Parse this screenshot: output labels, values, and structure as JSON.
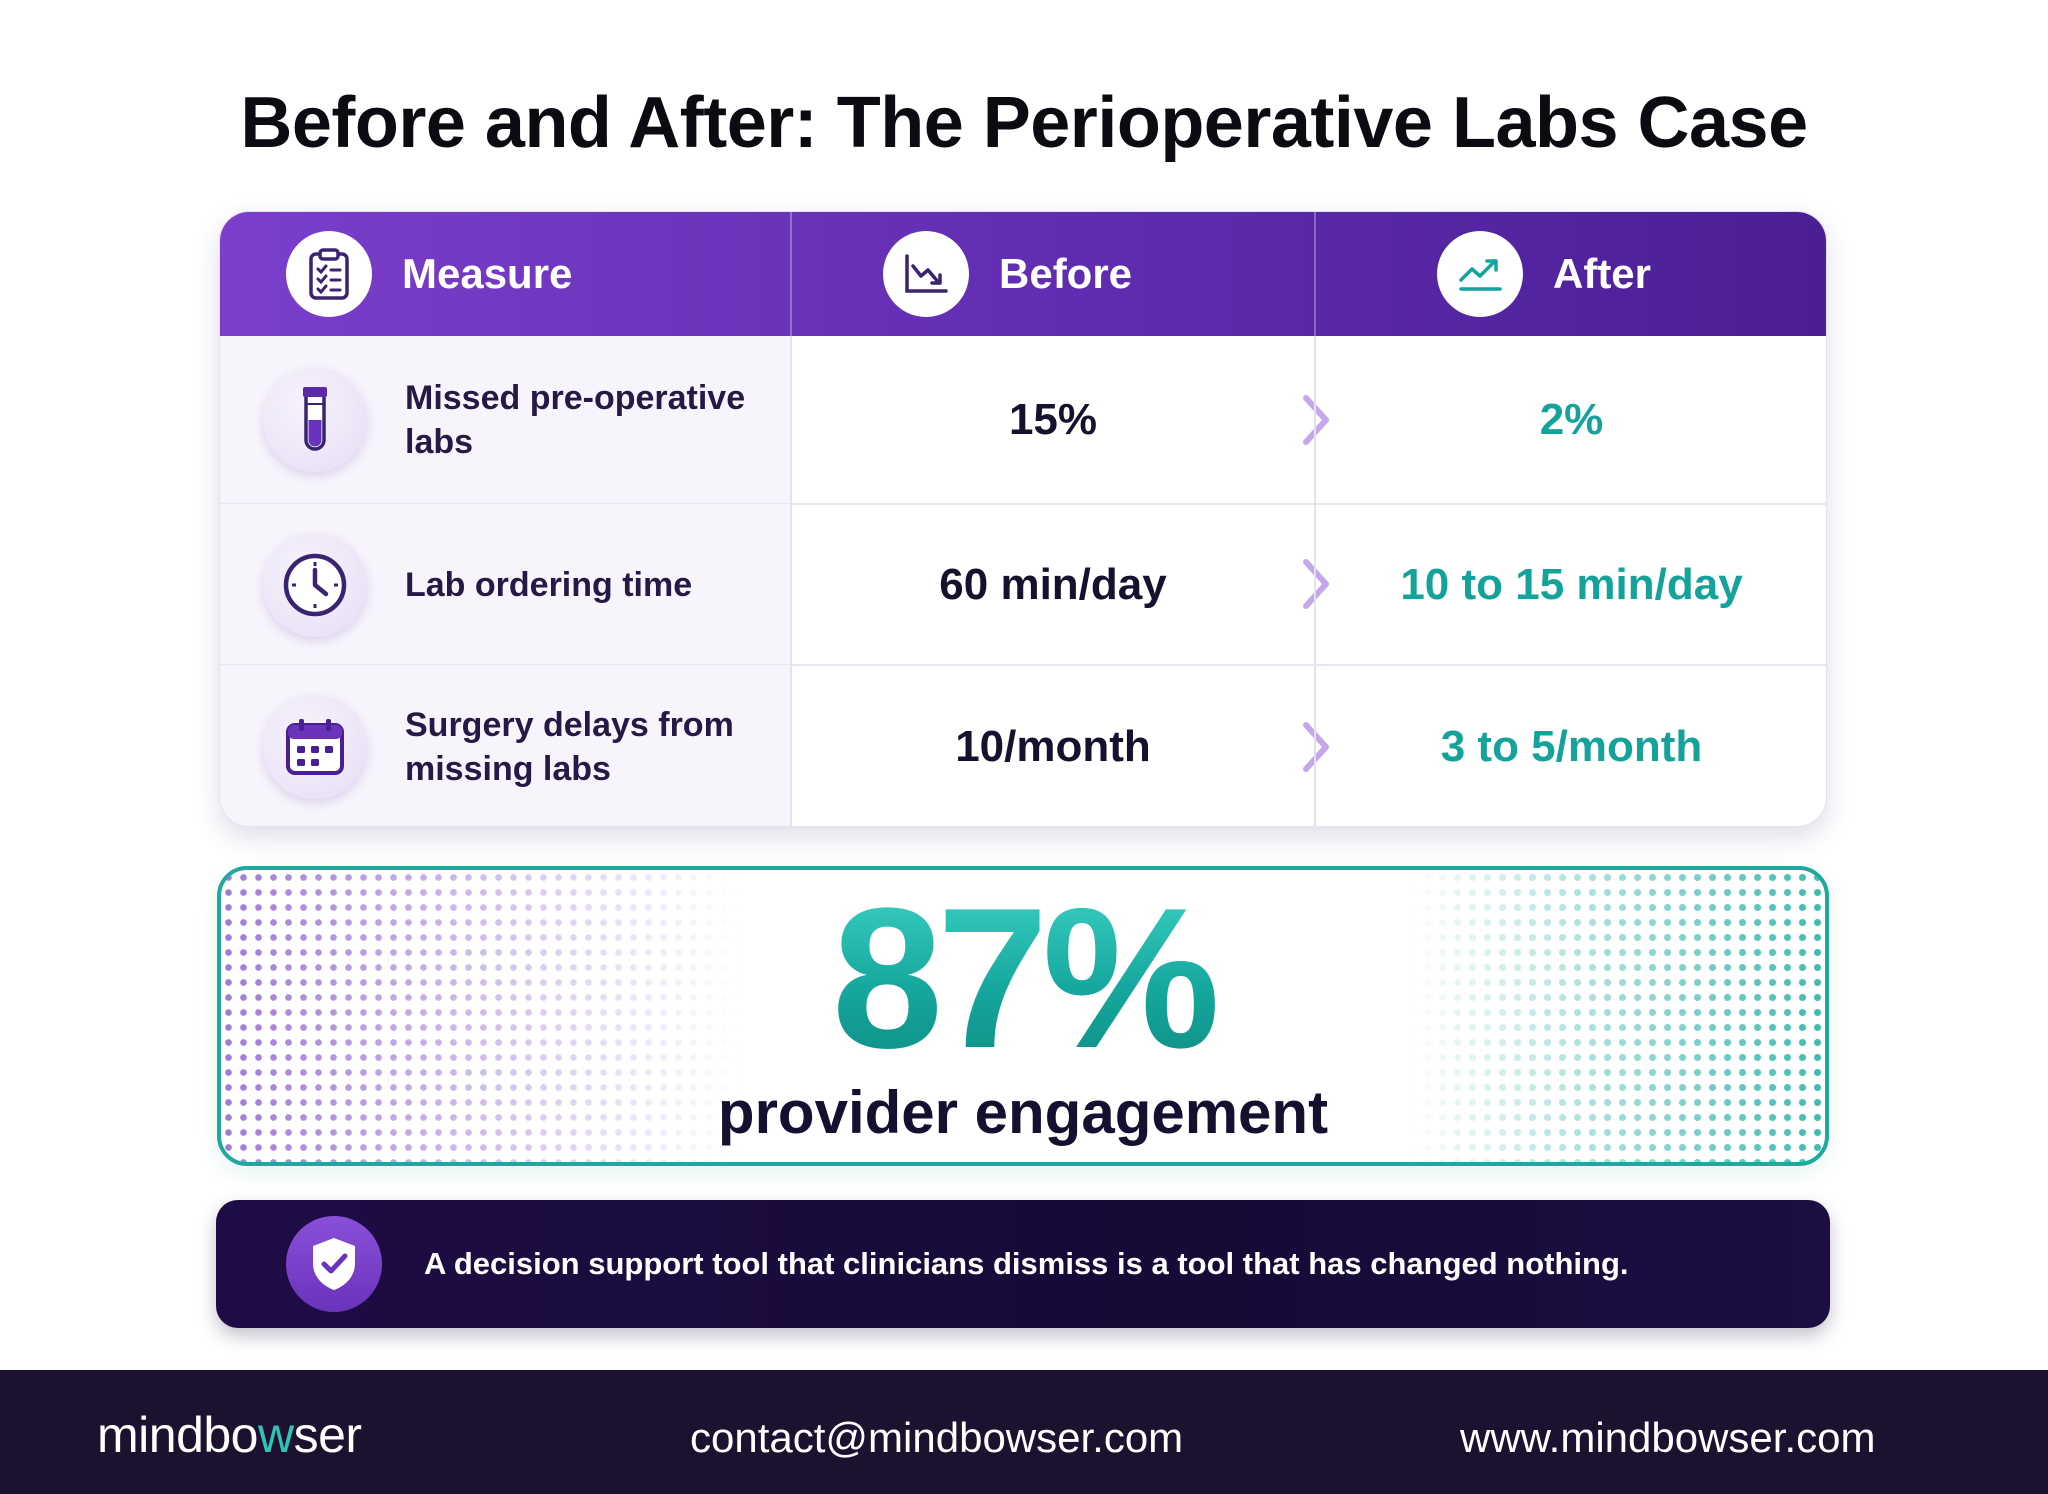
{
  "title": "Before and After: The Perioperative Labs Case",
  "table": {
    "headers": {
      "measure": "Measure",
      "before": "Before",
      "after": "After"
    },
    "rows": [
      {
        "measure": "Missed pre-operative labs",
        "before": "15%",
        "after": "2%",
        "icon": "test-tube-icon"
      },
      {
        "measure": "Lab ordering time",
        "before": "60 min/day",
        "after": "10 to 15 min/day",
        "icon": "clock-icon"
      },
      {
        "measure": "Surgery delays from missing labs",
        "before": "10/month",
        "after": "3 to 5/month",
        "icon": "calendar-icon"
      }
    ]
  },
  "stat": {
    "value": "87%",
    "caption": "provider engagement"
  },
  "quote": {
    "text": "A decision support tool that clinicians dismiss is a tool that has changed nothing.",
    "icon": "shield-check-icon"
  },
  "footer": {
    "brand_prefix": "mindbo",
    "brand_highlight": "w",
    "brand_suffix": "ser",
    "contact": "contact@mindbowser.com",
    "website": "www.mindbowser.com"
  },
  "colors": {
    "purple": "#6a33bb",
    "teal": "#14a39a",
    "navy": "#1c112f"
  }
}
